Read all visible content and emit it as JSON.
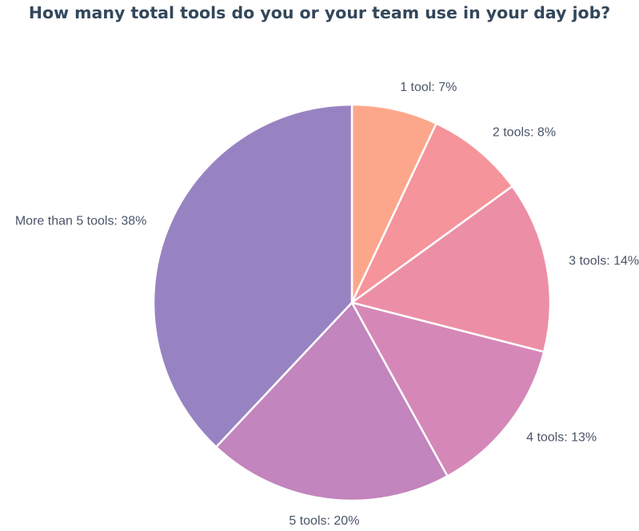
{
  "chart_data": {
    "type": "pie",
    "title": "How many total tools do you or your team use in your day job?",
    "slices": [
      {
        "label": "1 tool: 7%",
        "value": 7,
        "color": "#fca78b"
      },
      {
        "label": "2 tools: 8%",
        "value": 8,
        "color": "#f5949a"
      },
      {
        "label": "3 tools: 14%",
        "value": 14,
        "color": "#ec8fa6"
      },
      {
        "label": "4 tools: 13%",
        "value": 13,
        "color": "#d588b8"
      },
      {
        "label": "5 tools: 20%",
        "value": 20,
        "color": "#c285bd"
      },
      {
        "label": "More than 5 tools: 38%",
        "value": 38,
        "color": "#9883c2"
      }
    ]
  }
}
